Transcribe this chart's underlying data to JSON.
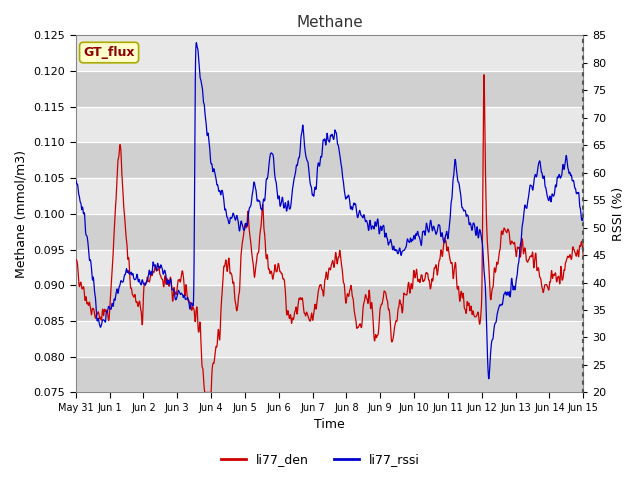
{
  "title": "Methane",
  "ylabel_left": "Methane (mmol/m3)",
  "ylabel_right": "RSSI (%)",
  "xlabel": "Time",
  "ylim_left": [
    0.075,
    0.125
  ],
  "ylim_right": [
    20,
    85
  ],
  "legend_label_red": "li77_den",
  "legend_label_blue": "li77_rssi",
  "line_color_red": "#cc0000",
  "line_color_blue": "#0000cc",
  "fig_facecolor": "#ffffff",
  "plot_bg_color": "#e8e8e8",
  "annotation_text": "GT_flux",
  "annotation_bg": "#ffffcc",
  "annotation_border": "#aaaa00",
  "xtick_labels": [
    "May 31",
    "Jun 1",
    "Jun 2",
    "Jun 3",
    "Jun 4",
    "Jun 5",
    "Jun 6",
    "Jun 7",
    "Jun 8",
    "Jun 9",
    "Jun 10",
    "Jun 11",
    "Jun 12",
    "Jun 13",
    "Jun 14",
    "Jun 15"
  ],
  "right_yticks": [
    20,
    25,
    30,
    35,
    40,
    45,
    50,
    55,
    60,
    65,
    70,
    75,
    80,
    85
  ],
  "left_yticks": [
    0.075,
    0.08,
    0.085,
    0.09,
    0.095,
    0.1,
    0.105,
    0.11,
    0.115,
    0.12,
    0.125
  ]
}
